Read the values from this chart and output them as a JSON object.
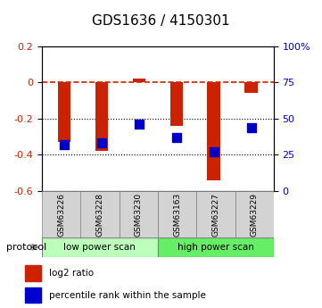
{
  "title": "GDS1636 / 4150301",
  "samples": [
    "GSM63226",
    "GSM63228",
    "GSM63230",
    "GSM63163",
    "GSM63227",
    "GSM63229"
  ],
  "log2_ratio": [
    -0.33,
    -0.38,
    0.02,
    -0.24,
    -0.54,
    -0.06
  ],
  "percentile_rank": [
    32,
    33,
    46,
    37,
    27,
    44
  ],
  "ylim_left": [
    -0.6,
    0.2
  ],
  "ylim_right": [
    0,
    100
  ],
  "bar_color": "#cc2200",
  "dot_color": "#0000cc",
  "dashed_line_color": "#cc2200",
  "dotted_line_color": "#000000",
  "protocol_labels": [
    "low power scan",
    "high power scan"
  ],
  "protocol_color_low": "#bbffbb",
  "protocol_color_high": "#66ee66",
  "bar_width": 0.35
}
